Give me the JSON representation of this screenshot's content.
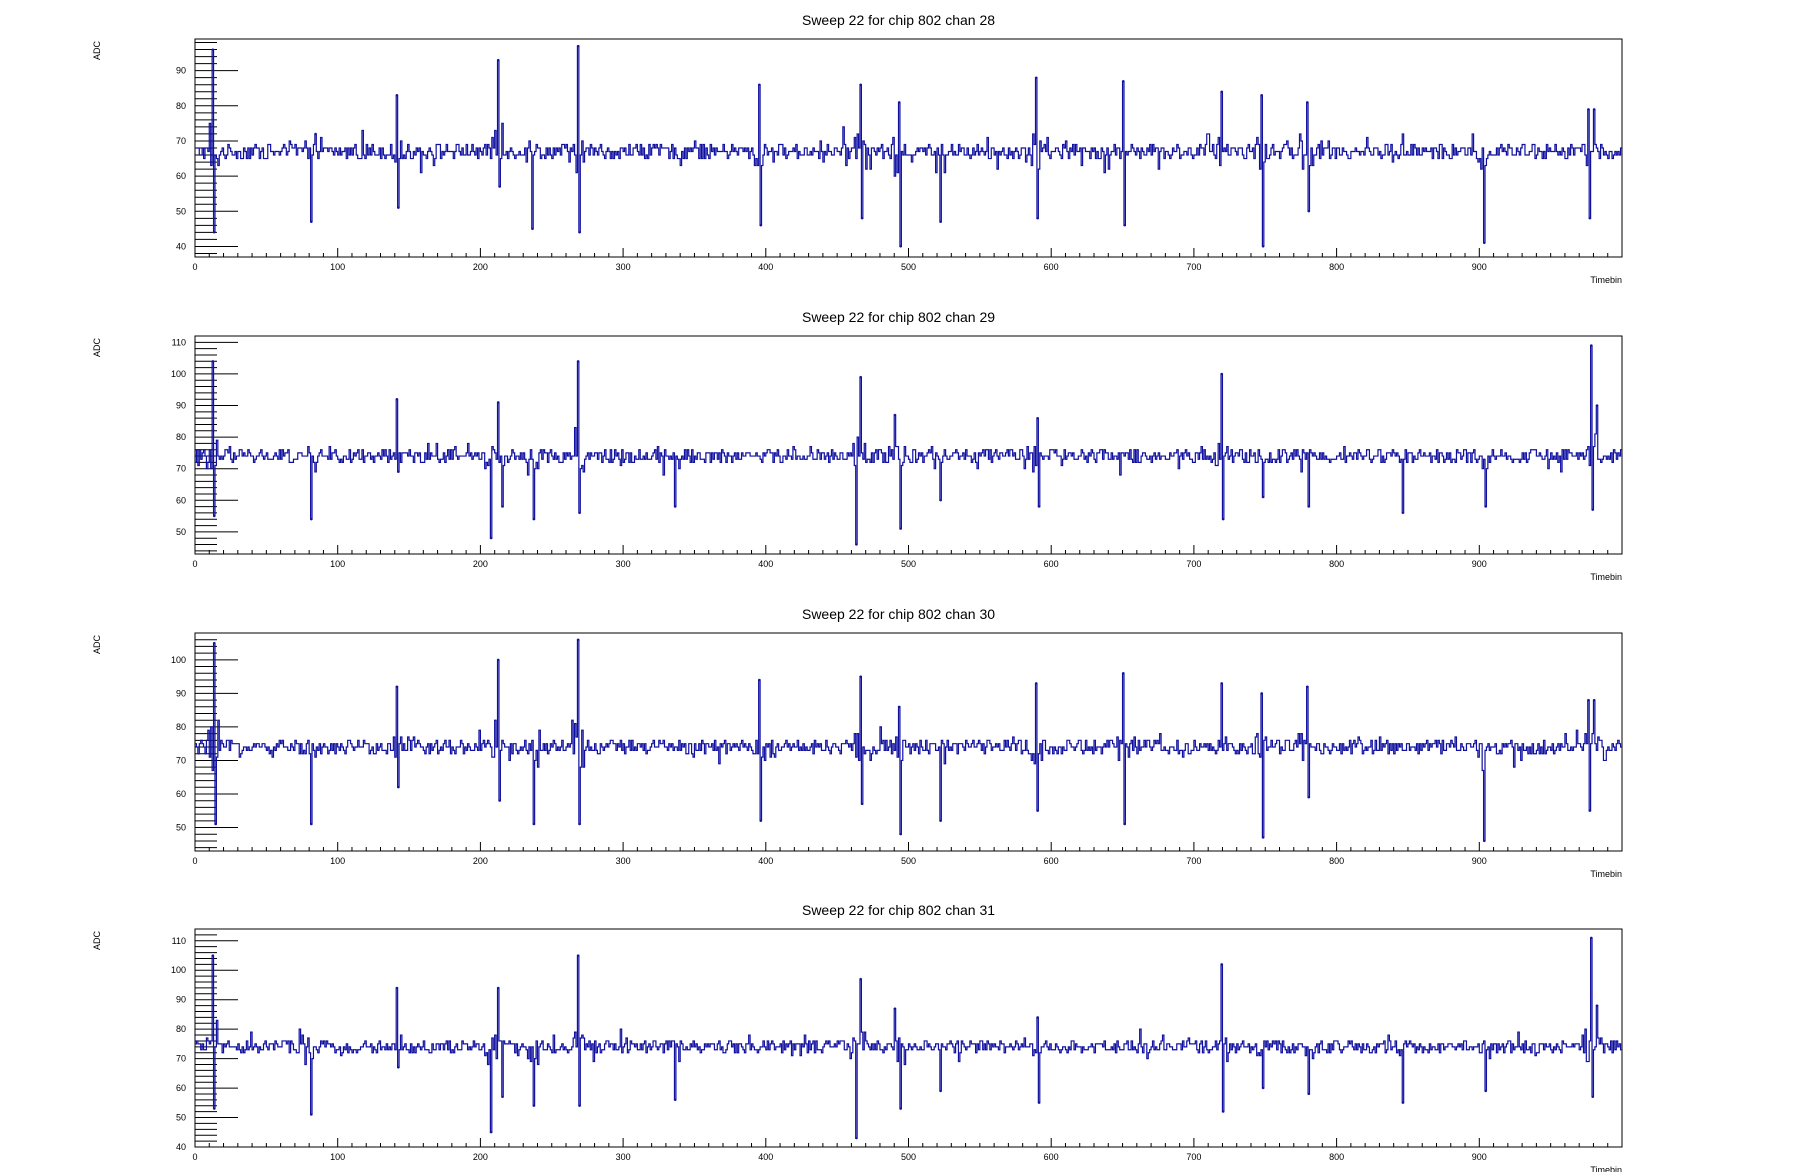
{
  "chart_data": [
    {
      "type": "line",
      "title": "Sweep 22 for chip 802 chan 28",
      "xlabel": "Timebin",
      "ylabel": "ADC",
      "xlim": [
        0,
        1000
      ],
      "ylim": [
        37,
        99
      ],
      "xticks": [
        0,
        100,
        200,
        300,
        400,
        500,
        600,
        700,
        800,
        900
      ],
      "yticks": [
        40,
        50,
        60,
        70,
        80,
        90
      ],
      "baseline": 67,
      "grid": false,
      "line_color": "#1010a0",
      "spikes": [
        {
          "x": 12,
          "y": 96
        },
        {
          "x": 13,
          "y": 44
        },
        {
          "x": 81,
          "y": 47
        },
        {
          "x": 84,
          "y": 72
        },
        {
          "x": 141,
          "y": 83
        },
        {
          "x": 142,
          "y": 51
        },
        {
          "x": 212,
          "y": 93
        },
        {
          "x": 213,
          "y": 57
        },
        {
          "x": 236,
          "y": 45
        },
        {
          "x": 268,
          "y": 97
        },
        {
          "x": 269,
          "y": 44
        },
        {
          "x": 395,
          "y": 86
        },
        {
          "x": 396,
          "y": 46
        },
        {
          "x": 466,
          "y": 86
        },
        {
          "x": 467,
          "y": 48
        },
        {
          "x": 493,
          "y": 81
        },
        {
          "x": 494,
          "y": 40
        },
        {
          "x": 522,
          "y": 47
        },
        {
          "x": 589,
          "y": 88
        },
        {
          "x": 590,
          "y": 48
        },
        {
          "x": 650,
          "y": 87
        },
        {
          "x": 651,
          "y": 46
        },
        {
          "x": 719,
          "y": 84
        },
        {
          "x": 747,
          "y": 83
        },
        {
          "x": 748,
          "y": 40
        },
        {
          "x": 779,
          "y": 81
        },
        {
          "x": 780,
          "y": 50
        },
        {
          "x": 903,
          "y": 41
        },
        {
          "x": 976,
          "y": 79
        },
        {
          "x": 977,
          "y": 48
        },
        {
          "x": 980,
          "y": 79
        }
      ]
    },
    {
      "type": "line",
      "title": "Sweep 22 for chip 802 chan 29",
      "xlabel": "Timebin",
      "ylabel": "ADC",
      "xlim": [
        0,
        1000
      ],
      "ylim": [
        43,
        112
      ],
      "xticks": [
        0,
        100,
        200,
        300,
        400,
        500,
        600,
        700,
        800,
        900
      ],
      "yticks": [
        50,
        60,
        70,
        80,
        90,
        100,
        110
      ],
      "baseline": 74,
      "grid": false,
      "line_color": "#1010a0",
      "spikes": [
        {
          "x": 12,
          "y": 104
        },
        {
          "x": 13,
          "y": 55
        },
        {
          "x": 81,
          "y": 54
        },
        {
          "x": 141,
          "y": 92
        },
        {
          "x": 142,
          "y": 69
        },
        {
          "x": 207,
          "y": 48
        },
        {
          "x": 212,
          "y": 91
        },
        {
          "x": 215,
          "y": 58
        },
        {
          "x": 237,
          "y": 54
        },
        {
          "x": 268,
          "y": 104
        },
        {
          "x": 269,
          "y": 56
        },
        {
          "x": 336,
          "y": 58
        },
        {
          "x": 463,
          "y": 46
        },
        {
          "x": 466,
          "y": 99
        },
        {
          "x": 490,
          "y": 87
        },
        {
          "x": 494,
          "y": 51
        },
        {
          "x": 522,
          "y": 60
        },
        {
          "x": 590,
          "y": 86
        },
        {
          "x": 591,
          "y": 58
        },
        {
          "x": 719,
          "y": 100
        },
        {
          "x": 720,
          "y": 54
        },
        {
          "x": 748,
          "y": 61
        },
        {
          "x": 780,
          "y": 58
        },
        {
          "x": 846,
          "y": 56
        },
        {
          "x": 904,
          "y": 58
        },
        {
          "x": 978,
          "y": 109
        },
        {
          "x": 979,
          "y": 57
        },
        {
          "x": 982,
          "y": 90
        }
      ]
    },
    {
      "type": "line",
      "title": "Sweep 22 for chip 802 chan 30",
      "xlabel": "Timebin",
      "ylabel": "ADC",
      "xlim": [
        0,
        1000
      ],
      "ylim": [
        43,
        108
      ],
      "xticks": [
        0,
        100,
        200,
        300,
        400,
        500,
        600,
        700,
        800,
        900
      ],
      "yticks": [
        50,
        60,
        70,
        80,
        90,
        100
      ],
      "baseline": 74,
      "grid": false,
      "line_color": "#1010a0",
      "spikes": [
        {
          "x": 13,
          "y": 105
        },
        {
          "x": 14,
          "y": 51
        },
        {
          "x": 81,
          "y": 51
        },
        {
          "x": 141,
          "y": 92
        },
        {
          "x": 142,
          "y": 62
        },
        {
          "x": 212,
          "y": 100
        },
        {
          "x": 213,
          "y": 58
        },
        {
          "x": 237,
          "y": 51
        },
        {
          "x": 268,
          "y": 106
        },
        {
          "x": 269,
          "y": 51
        },
        {
          "x": 395,
          "y": 94
        },
        {
          "x": 396,
          "y": 52
        },
        {
          "x": 466,
          "y": 95
        },
        {
          "x": 467,
          "y": 57
        },
        {
          "x": 493,
          "y": 86
        },
        {
          "x": 494,
          "y": 48
        },
        {
          "x": 522,
          "y": 52
        },
        {
          "x": 589,
          "y": 93
        },
        {
          "x": 590,
          "y": 55
        },
        {
          "x": 650,
          "y": 96
        },
        {
          "x": 651,
          "y": 51
        },
        {
          "x": 719,
          "y": 93
        },
        {
          "x": 747,
          "y": 90
        },
        {
          "x": 748,
          "y": 47
        },
        {
          "x": 779,
          "y": 92
        },
        {
          "x": 780,
          "y": 59
        },
        {
          "x": 903,
          "y": 46
        },
        {
          "x": 976,
          "y": 88
        },
        {
          "x": 977,
          "y": 55
        },
        {
          "x": 980,
          "y": 88
        }
      ]
    },
    {
      "type": "line",
      "title": "Sweep 22 for chip 802 chan 31",
      "xlabel": "Timebin",
      "ylabel": "ADC",
      "xlim": [
        0,
        1000
      ],
      "ylim": [
        40,
        114
      ],
      "xticks": [
        0,
        100,
        200,
        300,
        400,
        500,
        600,
        700,
        800,
        900
      ],
      "yticks": [
        40,
        50,
        60,
        70,
        80,
        90,
        100,
        110
      ],
      "baseline": 74,
      "grid": false,
      "line_color": "#1010a0",
      "spikes": [
        {
          "x": 12,
          "y": 105
        },
        {
          "x": 13,
          "y": 53
        },
        {
          "x": 81,
          "y": 51
        },
        {
          "x": 141,
          "y": 94
        },
        {
          "x": 142,
          "y": 67
        },
        {
          "x": 207,
          "y": 45
        },
        {
          "x": 212,
          "y": 94
        },
        {
          "x": 215,
          "y": 57
        },
        {
          "x": 237,
          "y": 54
        },
        {
          "x": 268,
          "y": 105
        },
        {
          "x": 269,
          "y": 54
        },
        {
          "x": 336,
          "y": 56
        },
        {
          "x": 463,
          "y": 43
        },
        {
          "x": 466,
          "y": 97
        },
        {
          "x": 490,
          "y": 87
        },
        {
          "x": 494,
          "y": 53
        },
        {
          "x": 522,
          "y": 59
        },
        {
          "x": 590,
          "y": 84
        },
        {
          "x": 591,
          "y": 55
        },
        {
          "x": 719,
          "y": 102
        },
        {
          "x": 720,
          "y": 52
        },
        {
          "x": 748,
          "y": 60
        },
        {
          "x": 780,
          "y": 58
        },
        {
          "x": 846,
          "y": 55
        },
        {
          "x": 904,
          "y": 59
        },
        {
          "x": 978,
          "y": 111
        },
        {
          "x": 979,
          "y": 57
        },
        {
          "x": 982,
          "y": 88
        }
      ]
    }
  ]
}
